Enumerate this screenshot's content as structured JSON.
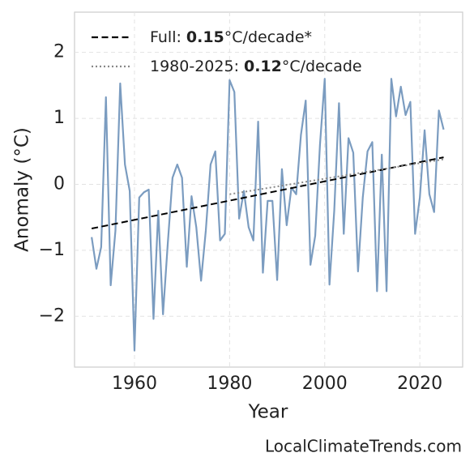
{
  "chart_data": {
    "type": "line",
    "xlabel": "Year",
    "ylabel": "Anomaly (°C)",
    "watermark": "LocalClimateTrends.com",
    "xlim": [
      1947.4,
      2029.0
    ],
    "xticks": [
      1960,
      1980,
      2000,
      2020
    ],
    "ylim": [
      -2.77,
      2.61
    ],
    "yticks": [
      {
        "value": -2,
        "label": "−2"
      },
      {
        "value": -1,
        "label": "−1"
      },
      0,
      1,
      2
    ],
    "grid": true,
    "legend": "upper left",
    "series": [
      {
        "color": "#7b9cc0",
        "dash": "solid",
        "in_legend": false,
        "x": [
          1951,
          1952,
          1953,
          1954,
          1955,
          1956,
          1957,
          1958,
          1959,
          1960,
          1961,
          1962,
          1963,
          1964,
          1965,
          1966,
          1967,
          1968,
          1969,
          1970,
          1971,
          1972,
          1973,
          1974,
          1975,
          1976,
          1977,
          1978,
          1979,
          1980,
          1981,
          1982,
          1983,
          1984,
          1985,
          1986,
          1987,
          1988,
          1989,
          1990,
          1991,
          1992,
          1993,
          1994,
          1995,
          1996,
          1997,
          1998,
          1999,
          2000,
          2001,
          2002,
          2003,
          2004,
          2005,
          2006,
          2007,
          2008,
          2009,
          2010,
          2011,
          2012,
          2013,
          2014,
          2015,
          2016,
          2017,
          2018,
          2019,
          2020,
          2021,
          2022,
          2023,
          2024,
          2025
        ],
        "values": [
          -0.8,
          -1.28,
          -0.95,
          1.32,
          -1.53,
          -0.7,
          1.53,
          0.3,
          -0.1,
          -2.52,
          -0.2,
          -0.12,
          -0.08,
          -2.04,
          -0.4,
          -1.97,
          -0.9,
          0.1,
          0.3,
          0.1,
          -1.25,
          -0.18,
          -0.65,
          -1.46,
          -0.7,
          0.3,
          0.5,
          -0.85,
          -0.75,
          1.58,
          1.4,
          -0.52,
          -0.1,
          -0.65,
          -0.85,
          0.95,
          -1.34,
          -0.25,
          -0.25,
          -1.45,
          0.23,
          -0.62,
          -0.05,
          -0.15,
          0.75,
          1.27,
          -1.22,
          -0.78,
          0.6,
          1.6,
          -1.52,
          -0.4,
          1.23,
          -0.75,
          0.7,
          0.48,
          -1.32,
          -0.2,
          0.5,
          0.64,
          -1.62,
          0.45,
          -1.62,
          1.6,
          1.03,
          1.48,
          1.05,
          1.25,
          -0.75,
          -0.2,
          0.82,
          -0.15,
          -0.42,
          1.12,
          0.83
        ]
      },
      {
        "name": [
          "Full:",
          "0.15",
          "°C/decade*"
        ],
        "color": "#000000",
        "dash": "dashed",
        "in_legend": true,
        "x": [
          1951,
          2025
        ],
        "values": [
          -0.67,
          0.41
        ]
      },
      {
        "name": [
          "1980-2025:",
          "0.12",
          "°C/decade"
        ],
        "color": "#888888",
        "dash": "dotted",
        "in_legend": true,
        "x": [
          1980,
          2025
        ],
        "values": [
          -0.15,
          0.38
        ]
      }
    ]
  }
}
